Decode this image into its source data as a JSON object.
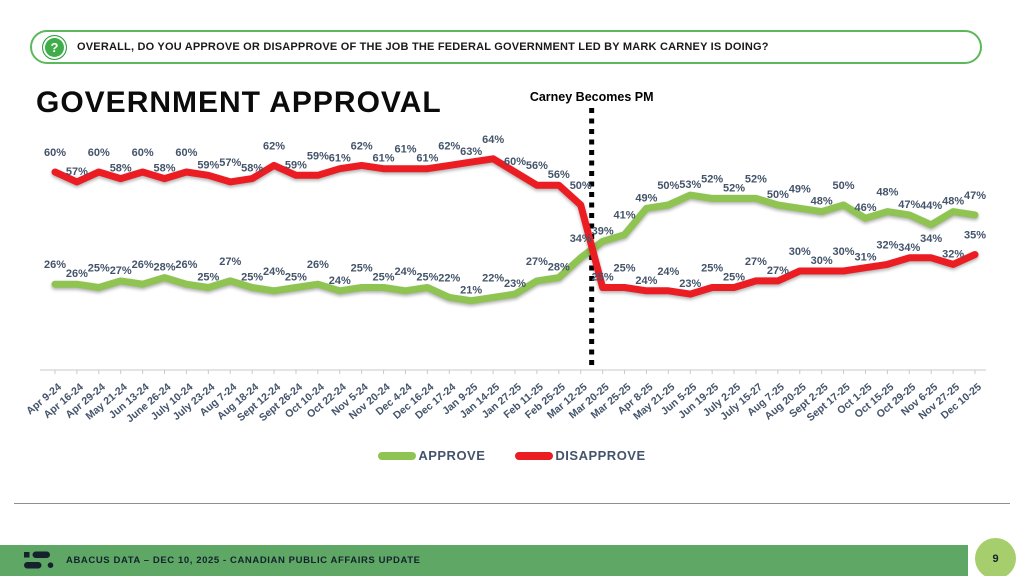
{
  "question_banner": {
    "icon": "question-bubble-icon",
    "text": "OVERALL, DO YOU APPROVE OR DISAPPROVE OF THE JOB THE FEDERAL GOVERNMENT LED BY MARK CARNEY IS DOING?"
  },
  "title": "GOVERNMENT APPROVAL",
  "chart_data": {
    "type": "line",
    "title": "GOVERNMENT APPROVAL",
    "categories": [
      "Apr 9-24",
      "Apr 16-24",
      "Apr 29-24",
      "May 21-24",
      "Jun 13-24",
      "June 26-24",
      "July 10-24",
      "July 23-24",
      "Aug 7-24",
      "Aug 18-24",
      "Sept 12-24",
      "Sept 26-24",
      "Oct 10-24",
      "Oct 22-24",
      "Nov 5-24",
      "Nov 20-24",
      "Dec 4-24",
      "Dec 16-24",
      "Dec 17-24",
      "Jan 9-25",
      "Jan 14-25",
      "Jan 27-25",
      "Feb 11-25",
      "Feb 25-25",
      "Mar 12-25",
      "Mar 20-25",
      "Mar 25-25",
      "Apr 8-25",
      "May 21-25",
      "Jun 5-25",
      "Jun 19-25",
      "July 2-25",
      "July 15-27",
      "Aug 7-25",
      "Aug 20-25",
      "Sept 2-25",
      "Sept 17-25",
      "Oct 1-25",
      "Oct 15-25",
      "Oct 29-25",
      "Nov 6-25",
      "Nov 27-25",
      "Dec 10-25"
    ],
    "series": [
      {
        "name": "APPROVE",
        "color": "#8FC352",
        "values": [
          26,
          26,
          25,
          27,
          26,
          28,
          26,
          25,
          27,
          25,
          24,
          25,
          26,
          24,
          25,
          25,
          24,
          25,
          22,
          21,
          22,
          23,
          27,
          28,
          34,
          39,
          41,
          49,
          50,
          53,
          52,
          52,
          52,
          50,
          49,
          48,
          50,
          46,
          48,
          47,
          44,
          48,
          47
        ]
      },
      {
        "name": "DISAPPROVE",
        "color": "#EC1C23",
        "values": [
          60,
          57,
          60,
          58,
          60,
          58,
          60,
          59,
          57,
          58,
          62,
          59,
          59,
          61,
          62,
          61,
          61,
          61,
          62,
          63,
          64,
          60,
          56,
          56,
          50,
          25,
          25,
          24,
          24,
          23,
          25,
          25,
          27,
          27,
          30,
          30,
          30,
          31,
          32,
          34,
          34,
          32,
          35
        ]
      }
    ],
    "annotation": {
      "label": "Carney Becomes PM",
      "after_category": "Mar 12-25",
      "style": "dotted-vertical-line"
    },
    "data_label_format": "percent",
    "ylim": [
      0,
      75
    ],
    "grid": false,
    "legend_position": "bottom",
    "label_color": "#44546A",
    "axis_color": "#C9C9C9"
  },
  "footer": {
    "brand": "abacus-data-logo",
    "text": "ABACUS DATA – DEC 10, 2025 - CANADIAN PUBLIC AFFAIRS UPDATE",
    "bar_color": "#5FA765",
    "page_number": "9",
    "page_badge_color": "#A7CE6D"
  }
}
